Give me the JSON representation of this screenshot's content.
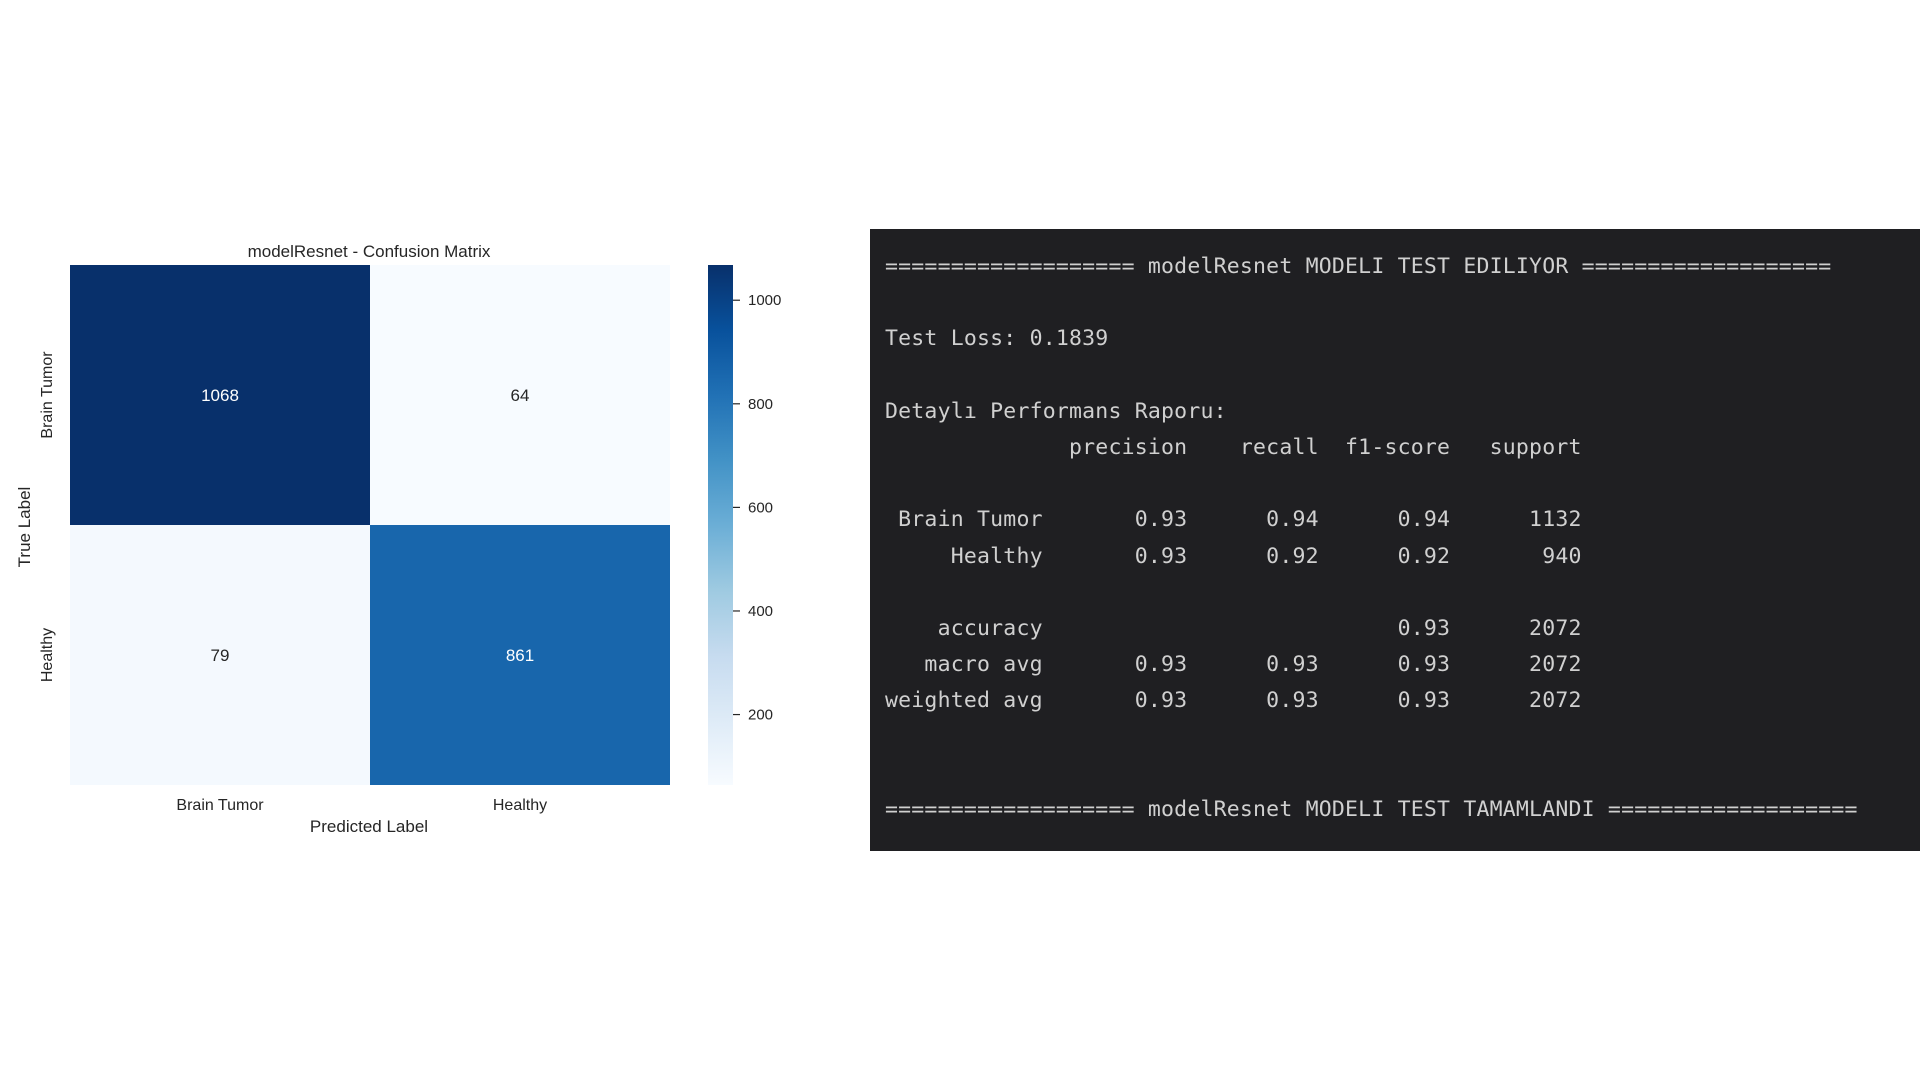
{
  "chart_data": {
    "type": "heatmap",
    "title": "modelResnet - Confusion Matrix",
    "xlabel": "Predicted Label",
    "ylabel": "True Label",
    "x_categories": [
      "Brain Tumor",
      "Healthy"
    ],
    "y_categories": [
      "Brain Tumor",
      "Healthy"
    ],
    "values": [
      [
        1068,
        64
      ],
      [
        79,
        861
      ]
    ],
    "colormap": "Blues",
    "colorbar": {
      "ticks": [
        200,
        400,
        600,
        800,
        1000
      ],
      "range": [
        64,
        1068
      ]
    },
    "colors": {
      "low": "#f7fbff",
      "mid": "#6baed6",
      "high": "#08306b"
    }
  },
  "terminal": {
    "lines": [
      "=================== modelResnet MODELI TEST EDILIYOR ===================",
      "",
      "Test Loss: 0.1839",
      "",
      "Detaylı Performans Raporu:",
      "              precision    recall  f1-score   support",
      "",
      " Brain Tumor       0.93      0.94      0.94      1132",
      "     Healthy       0.93      0.92      0.92       940",
      "",
      "    accuracy                           0.93      2072",
      "   macro avg       0.93      0.93      0.93      2072",
      "weighted avg       0.93      0.93      0.93      2072",
      "",
      "",
      "=================== modelResnet MODELI TEST TAMAMLANDI ==================="
    ]
  }
}
